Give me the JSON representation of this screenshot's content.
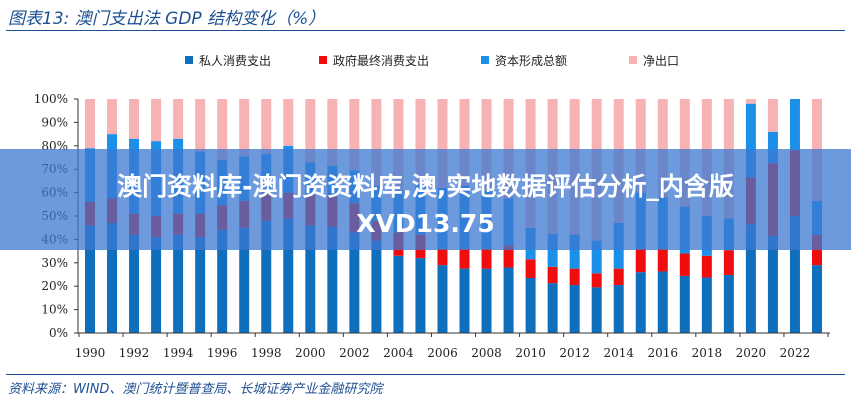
{
  "title": "图表13:  澳门支出法 GDP 结构变化（%）",
  "source": "资料来源：WIND、澳门统计暨普查局、长城证券产业金融研究院",
  "banner": {
    "line1": "澳门资料库-澳门资资料库,澳,实地数据评估分析_内含版",
    "line2": "XVD13.75"
  },
  "chart_data": {
    "type": "bar",
    "stacked": true,
    "title": "澳门支出法 GDP 结构变化（%）",
    "xlabel": "",
    "ylabel": "",
    "ylim": [
      0,
      100
    ],
    "yticks": [
      "0%",
      "10%",
      "20%",
      "30%",
      "40%",
      "50%",
      "60%",
      "70%",
      "80%",
      "90%",
      "100%"
    ],
    "xtick_labels": [
      "1990",
      "1992",
      "1994",
      "1996",
      "1998",
      "2000",
      "2002",
      "2004",
      "2006",
      "2008",
      "2010",
      "2012",
      "2014",
      "2016",
      "2018",
      "2020",
      "2022"
    ],
    "legend_position": "top",
    "grid": false,
    "categories": [
      "1990",
      "1991",
      "1992",
      "1993",
      "1994",
      "1995",
      "1996",
      "1997",
      "1998",
      "1999",
      "2000",
      "2001",
      "2002",
      "2003",
      "2004",
      "2005",
      "2006",
      "2007",
      "2008",
      "2009",
      "2010",
      "2011",
      "2012",
      "2013",
      "2014",
      "2015",
      "2016",
      "2017",
      "2018",
      "2019",
      "2020",
      "2021",
      "2022",
      "2023"
    ],
    "series": [
      {
        "name": "私人消费支出",
        "color": "#0e6fbf",
        "values": [
          46,
          47,
          42,
          41,
          42,
          41,
          44,
          45,
          48,
          49,
          46,
          45.5,
          43,
          39.5,
          33,
          32,
          29,
          27.5,
          27.5,
          28,
          23.5,
          21.3,
          20.5,
          19.5,
          20.5,
          26,
          26.3,
          24.4,
          23.7,
          24.8,
          46.5,
          41.5,
          50,
          29
        ]
      },
      {
        "name": "政府最终消费支出",
        "color": "#f00d0d",
        "values": [
          10,
          10.5,
          9,
          9,
          9,
          10,
          10.5,
          11.5,
          12,
          11,
          13,
          13,
          12.5,
          8.5,
          10,
          10,
          7,
          8.5,
          8.5,
          9.5,
          8,
          7,
          7,
          6,
          7,
          10,
          9.7,
          9.6,
          9.3,
          10.6,
          20,
          31,
          28,
          13
        ]
      },
      {
        "name": "资本形成总额",
        "color": "#1a90e8",
        "values": [
          23,
          27.5,
          32,
          32,
          32,
          26.5,
          19.5,
          19,
          16.5,
          20,
          14,
          13,
          14,
          15,
          18,
          22,
          26,
          27,
          25,
          20,
          13.5,
          14,
          14.5,
          14,
          19.5,
          24,
          22,
          20,
          17,
          13.6,
          31.5,
          13.5,
          22,
          14.4
        ]
      },
      {
        "name": "净出口",
        "color": "#f7b2b4",
        "values": [
          21,
          15,
          17,
          18,
          17,
          22.5,
          26,
          24.5,
          23.5,
          20,
          27,
          28.5,
          30.5,
          37,
          39,
          36,
          38,
          37,
          39,
          42.5,
          55,
          57.7,
          58,
          60.5,
          53,
          40,
          42,
          46,
          50,
          51,
          2,
          14,
          0,
          43.6
        ]
      }
    ]
  }
}
